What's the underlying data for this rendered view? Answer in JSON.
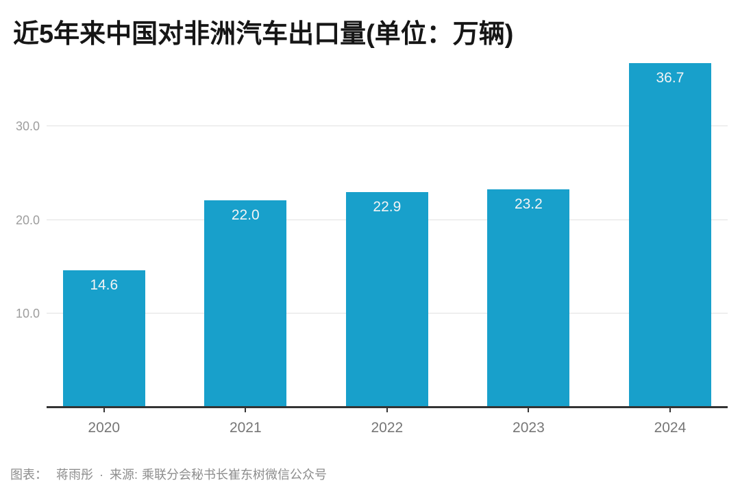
{
  "chart_data": {
    "type": "bar",
    "title": "近5年来中国对非洲汽车出口量(单位：万辆)",
    "categories": [
      "2020",
      "2021",
      "2022",
      "2023",
      "2024"
    ],
    "values": [
      14.6,
      22.0,
      22.9,
      23.2,
      36.7
    ],
    "value_labels": [
      "14.6",
      "22.0",
      "22.9",
      "23.2",
      "36.7"
    ],
    "yticks": [
      {
        "value": 10,
        "label": "10.0"
      },
      {
        "value": 20,
        "label": "20.0"
      },
      {
        "value": 30,
        "label": "30.0"
      }
    ],
    "ylim": [
      0,
      38
    ],
    "xlabel": "",
    "ylabel": "",
    "grid": "horizontal",
    "legend": "none",
    "bar_color": "#18a0cb",
    "value_label_color": "#f3f4f5",
    "axis_color": "#333333",
    "grid_color": "#e1e1e1",
    "background_color": "#ffffff"
  },
  "footer": {
    "byline_label": "图表：",
    "byline": "蒋雨彤",
    "separator": "·",
    "source_label": "来源:",
    "source": "乘联分会秘书长崔东树微信公众号"
  }
}
